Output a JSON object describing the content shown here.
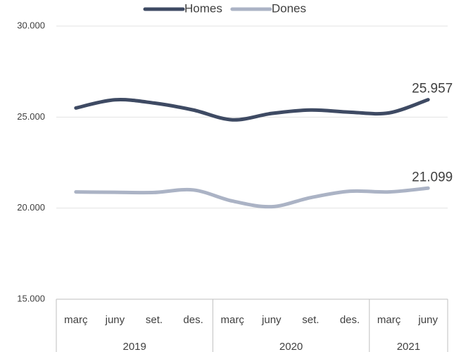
{
  "chart_data": {
    "type": "line",
    "groups": [
      {
        "name": "2019",
        "categories": [
          "març",
          "juny",
          "set.",
          "des."
        ]
      },
      {
        "name": "2020",
        "categories": [
          "març",
          "juny",
          "set.",
          "des."
        ]
      },
      {
        "name": "2021",
        "categories": [
          "març",
          "juny"
        ]
      }
    ],
    "series": [
      {
        "name": "Homes",
        "color": "#3e4a63",
        "values": [
          25500,
          25950,
          25770,
          25390,
          24850,
          25200,
          25390,
          25270,
          25230,
          25957
        ],
        "value_labels": [
          null,
          null,
          null,
          null,
          null,
          null,
          null,
          null,
          null,
          "25.957"
        ]
      },
      {
        "name": "Dones",
        "color": "#abb3c5",
        "values": [
          20890,
          20870,
          20860,
          21000,
          20390,
          20080,
          20580,
          20930,
          20890,
          21099
        ],
        "value_labels": [
          null,
          null,
          null,
          null,
          null,
          null,
          null,
          null,
          null,
          "21.099"
        ]
      }
    ],
    "ylim": [
      15000,
      30000
    ],
    "yticks": [
      {
        "value": 15000,
        "label": "15.000"
      },
      {
        "value": 20000,
        "label": "20.000"
      },
      {
        "value": 25000,
        "label": "25.000"
      },
      {
        "value": 30000,
        "label": "30.000"
      }
    ],
    "grid": true,
    "legend": "top"
  }
}
